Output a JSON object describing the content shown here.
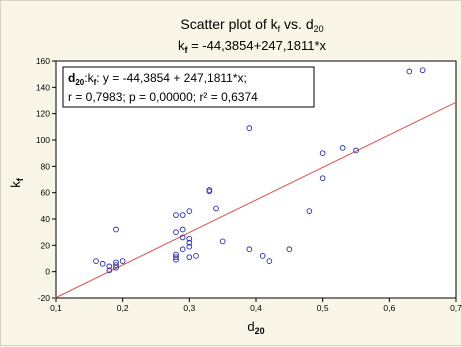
{
  "chart_data": {
    "type": "scatter",
    "title": {
      "main": "Scatter plot of k",
      "sub": "f",
      "tail": " vs. d",
      "sub2": "20"
    },
    "subtitle": {
      "lhs": "k",
      "lhs_sub": "f",
      "rhs": " = -44,3854+247,1811*x"
    },
    "xlabel": {
      "main": "d",
      "sub": "20"
    },
    "ylabel": {
      "main": "k",
      "sub": "f"
    },
    "xlim": [
      0.1,
      0.7
    ],
    "ylim": [
      -20,
      160
    ],
    "xticks": [
      0.1,
      0.2,
      0.3,
      0.4,
      0.5,
      0.6,
      0.7
    ],
    "xtick_labels": [
      "0,1",
      "0,2",
      "0,3",
      "0,4",
      "0,5",
      "0,6",
      "0,7"
    ],
    "yticks": [
      -20,
      0,
      20,
      40,
      60,
      80,
      100,
      120,
      140,
      160
    ],
    "ytick_labels": [
      "-20",
      "0",
      "20",
      "40",
      "60",
      "80",
      "100",
      "120",
      "140",
      "160"
    ],
    "grid": false,
    "fit": {
      "intercept": -44.3854,
      "slope": 247.1811,
      "color": "#d9534f"
    },
    "annotation": {
      "line1_prefix": "d",
      "line1_sub1": "20",
      "line1_mid": ":k",
      "line1_sub2": "f",
      "line1_rest": ":   y = -44,3854 + 247,1811*x;",
      "line2": "r = 0,7983; p = 0,00000; r² = 0,6374"
    },
    "marker_color": "#2a2aa8",
    "x": [
      0.16,
      0.17,
      0.18,
      0.18,
      0.19,
      0.19,
      0.19,
      0.19,
      0.2,
      0.28,
      0.28,
      0.28,
      0.28,
      0.28,
      0.29,
      0.29,
      0.29,
      0.29,
      0.3,
      0.3,
      0.3,
      0.3,
      0.3,
      0.31,
      0.33,
      0.33,
      0.34,
      0.35,
      0.39,
      0.39,
      0.41,
      0.42,
      0.45,
      0.48,
      0.5,
      0.5,
      0.53,
      0.55,
      0.63,
      0.65
    ],
    "y": [
      8,
      6,
      4,
      1,
      32,
      7,
      5,
      3,
      8,
      43,
      30,
      13,
      11,
      9,
      43,
      32,
      26,
      17,
      46,
      25,
      22,
      19,
      11,
      12,
      62,
      61,
      48,
      23,
      109,
      17,
      12,
      8,
      17,
      46,
      90,
      71,
      94,
      92,
      152,
      153
    ]
  }
}
